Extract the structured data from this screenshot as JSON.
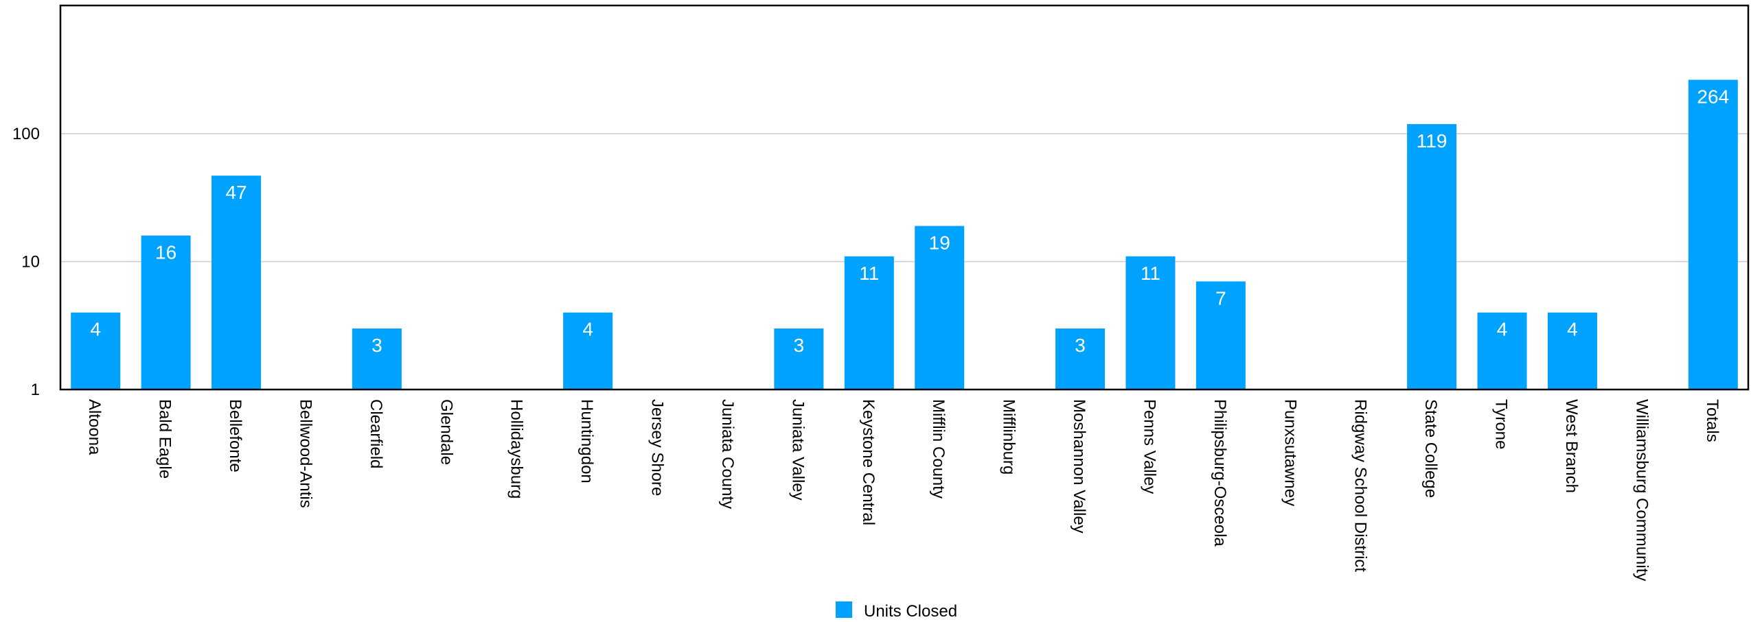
{
  "chart_data": {
    "type": "bar",
    "title": "",
    "xlabel": "",
    "ylabel": "",
    "y_scale": "log",
    "ylim": [
      1,
      400
    ],
    "y_ticks": [
      1,
      10,
      100
    ],
    "y_tick_labels": [
      "1",
      "10",
      "100"
    ],
    "grid": "horizontal",
    "legend_position": "bottom-center",
    "bar_color": "#00A2FF",
    "categories": [
      "Altoona",
      "Bald Eagle",
      "Bellefonte",
      "Bellwood-Antis",
      "Clearfield",
      "Glendale",
      "Hollidaysburg",
      "Huntingdon",
      "Jersey Shore",
      "Juniata County",
      "Juniata Valley",
      "Keystone Central",
      "Mifflin County",
      "Mifflinburg",
      "Moshannon Valley",
      "Penns Valley",
      "Philipsburg-Osceola",
      "Punxsutawney",
      "Ridgway School District",
      "State College",
      "Tyrone",
      "West Branch",
      "Williamsburg Community",
      "Totals"
    ],
    "series": [
      {
        "name": "Units Closed",
        "values": [
          4,
          16,
          47,
          null,
          3,
          null,
          null,
          4,
          null,
          null,
          3,
          11,
          19,
          null,
          3,
          11,
          7,
          null,
          null,
          119,
          4,
          4,
          null,
          264
        ],
        "labels": [
          "4",
          "16",
          "47",
          "",
          "3",
          "",
          "",
          "4",
          "",
          "",
          "3",
          "11",
          "19",
          "",
          "3",
          "11",
          "7",
          "",
          "",
          "119",
          "4",
          "4",
          "",
          "264"
        ]
      }
    ]
  }
}
